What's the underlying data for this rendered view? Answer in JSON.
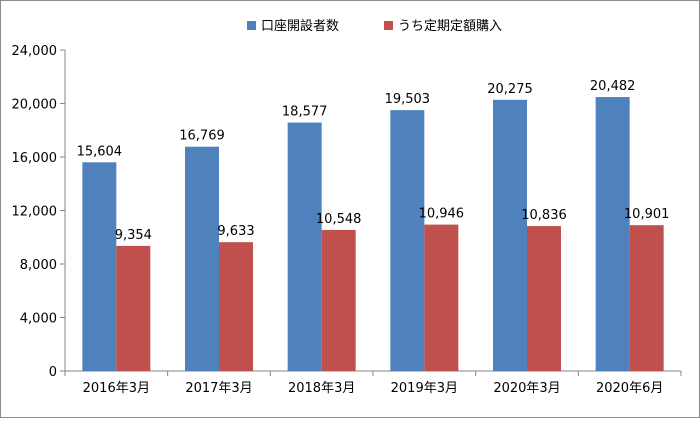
{
  "chart_data": {
    "type": "bar",
    "categories": [
      "2016年3月",
      "2017年3月",
      "2018年3月",
      "2019年3月",
      "2020年3月",
      "2020年6月"
    ],
    "series": [
      {
        "name": "口座開設者数",
        "color": "#4f81bd",
        "values": [
          15604,
          16769,
          18577,
          19503,
          20275,
          20482
        ],
        "labels": [
          "15,604",
          "16,769",
          "18,577",
          "19,503",
          "20,275",
          "20,482"
        ]
      },
      {
        "name": "うち定期定額購入",
        "color": "#c0504d",
        "values": [
          9354,
          9633,
          10548,
          10946,
          10836,
          10901
        ],
        "labels": [
          "9,354",
          "9,633",
          "10,548",
          "10,946",
          "10,836",
          "10,901"
        ]
      }
    ],
    "ylim": [
      0,
      24000
    ],
    "yticks": [
      "0",
      "4,000",
      "8,000",
      "12,000",
      "16,000",
      "20,000",
      "24,000"
    ],
    "ytick_values": [
      0,
      4000,
      8000,
      12000,
      16000,
      20000,
      24000
    ],
    "legend_position": "top",
    "grid": false
  }
}
